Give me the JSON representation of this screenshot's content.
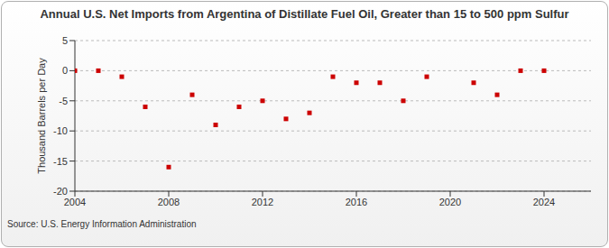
{
  "chart_data": {
    "type": "scatter",
    "title": "Annual U.S. Net Imports from Argentina of Distillate Fuel Oil, Greater than 15 to 500 ppm Sulfur",
    "y_label": "Thousand Barrels per Day",
    "source": "Source: U.S. Energy Information Administration",
    "x": [
      2004,
      2005,
      2006,
      2007,
      2008,
      2009,
      2010,
      2011,
      2012,
      2013,
      2014,
      2015,
      2016,
      2017,
      2018,
      2019,
      2020,
      2021,
      2022,
      2023,
      2024
    ],
    "values": [
      0,
      0,
      -1,
      -6,
      -16,
      -4,
      -9,
      -6,
      -5,
      -8,
      -7,
      -1,
      -2,
      -2,
      -5,
      -1,
      null,
      -2,
      -4,
      0,
      0
    ],
    "color": "#cc0000",
    "marker": "square",
    "xlim": [
      2004,
      2026
    ],
    "xticks": [
      2004,
      2008,
      2012,
      2016,
      2020,
      2024
    ],
    "ylim": [
      -20,
      5
    ],
    "yticks": [
      -20,
      -15,
      -10,
      -5,
      0,
      5
    ],
    "grid": true
  }
}
